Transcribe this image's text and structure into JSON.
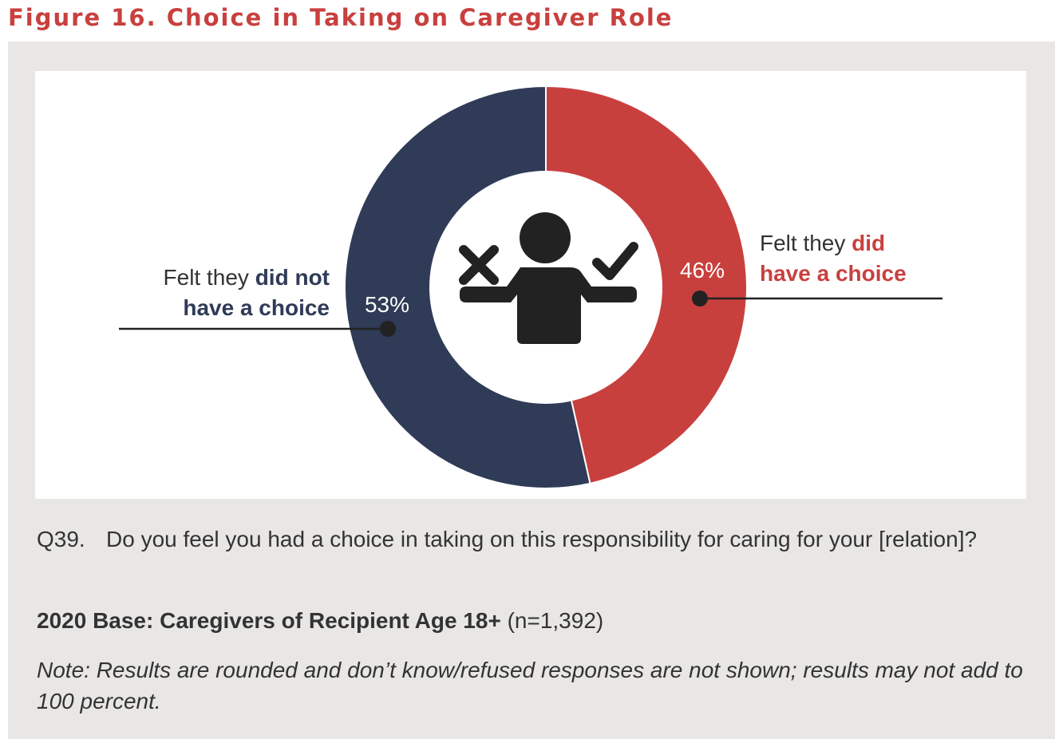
{
  "figure": {
    "title": "Figure 16. Choice in Taking on Caregiver Role"
  },
  "colors": {
    "title": "#c8403e",
    "navy": "#2f3b57",
    "red": "#c8403e",
    "panel": "#e8e7e5",
    "text": "#333333"
  },
  "chart_data": {
    "type": "pie",
    "variant": "donut",
    "center_icon": "person-with-x-and-check-icon",
    "slices": [
      {
        "label_plain": "Felt they ",
        "label_bold_1": "did not",
        "label_bold_2": "have a choice",
        "value": 53,
        "value_label": "53%",
        "color": "#2f3b57"
      },
      {
        "label_plain": "Felt they ",
        "label_bold_1": "did",
        "label_bold_2": "have a choice",
        "value": 46,
        "value_label": "46%",
        "color": "#c8403e"
      }
    ]
  },
  "question": {
    "number": "Q39.",
    "text": "Do you feel you had a choice in taking on this responsibility for caring for your [relation]?"
  },
  "base": {
    "bold": "2020 Base: Caregivers of Recipient Age 18+",
    "normal": " (n=1,392)"
  },
  "note": "Note: Results are rounded and don’t know/refused responses are not shown; results may not add to 100 percent."
}
